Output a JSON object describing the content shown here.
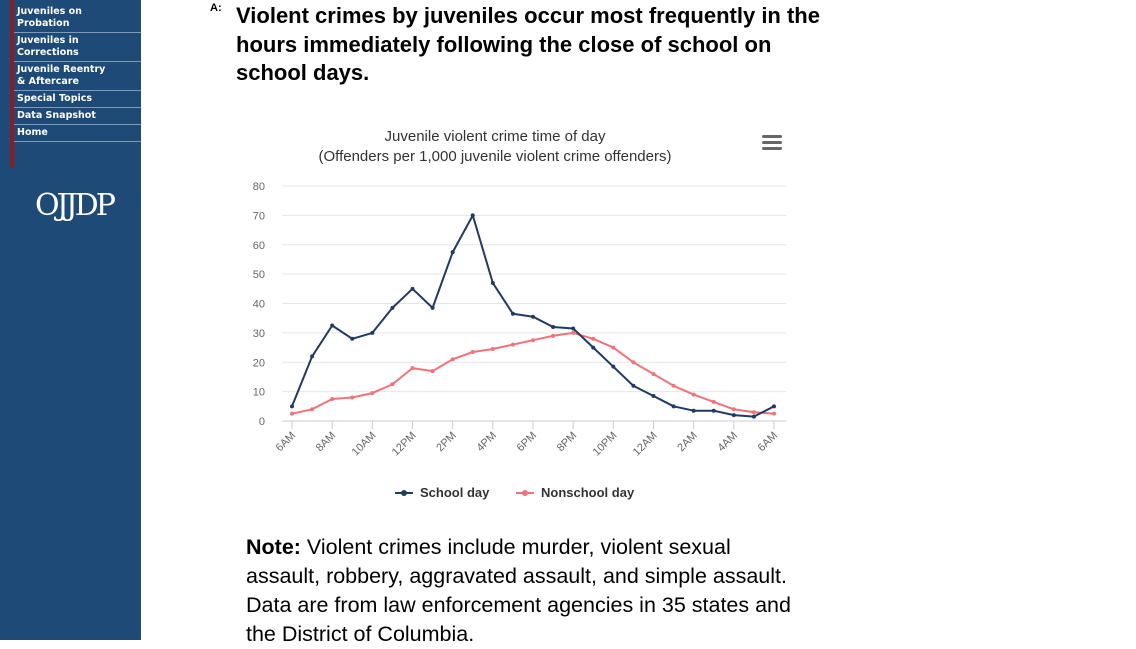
{
  "sidebar": {
    "items": [
      {
        "label": "Juveniles on\nProbation"
      },
      {
        "label": "Juveniles in\nCorrections"
      },
      {
        "label": "Juvenile Reentry\n& Aftercare"
      },
      {
        "label": "Special Topics"
      },
      {
        "label": "Data Snapshot"
      },
      {
        "label": "Home"
      }
    ],
    "logo": "OJJDP"
  },
  "answer": {
    "marker": "A:",
    "text": "Violent crimes by juveniles occur most frequently in the hours immediately following the close of school on school days."
  },
  "note": {
    "label": "Note:",
    "text": " Violent crimes include murder, violent sexual assault, robbery, aggravated assault, and simple assault. Data are from law enforcement agencies in 35 states and the District of Columbia."
  },
  "chart_data": {
    "type": "line",
    "title": "Juvenile violent crime time of day",
    "subtitle": "(Offenders per 1,000 juvenile violent crime offenders)",
    "xlabel": "",
    "ylabel": "",
    "ylim": [
      0,
      80
    ],
    "yticks": [
      0,
      10,
      20,
      30,
      40,
      50,
      60,
      70,
      80
    ],
    "grid": true,
    "x_tick_labels": [
      "6AM",
      "8AM",
      "10AM",
      "12PM",
      "2PM",
      "4PM",
      "6PM",
      "8PM",
      "10PM",
      "12AM",
      "2AM",
      "4AM",
      "6AM"
    ],
    "legend_position": "bottom-center",
    "series": [
      {
        "name": "School day",
        "color": "#1f3a64",
        "values": [
          5,
          22,
          32.5,
          28,
          30,
          38.5,
          45,
          38.5,
          57.5,
          70,
          47,
          36.5,
          35.5,
          32,
          31.5,
          25,
          18.5,
          12,
          8.5,
          5,
          3.5,
          3.5,
          2,
          1.5,
          5
        ]
      },
      {
        "name": "Nonschool day",
        "color": "#f0737a",
        "values": [
          2.5,
          4,
          7.5,
          8,
          9.5,
          12.5,
          18,
          17,
          21,
          23.5,
          24.5,
          26,
          27.5,
          29,
          30,
          28,
          25,
          20,
          16,
          12,
          9,
          6.5,
          4,
          3,
          2.5
        ]
      }
    ]
  }
}
